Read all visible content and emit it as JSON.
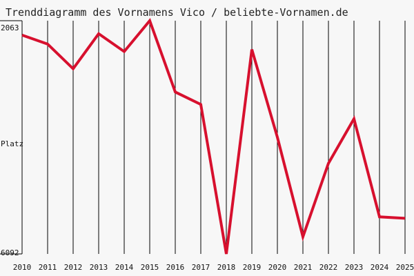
{
  "chart_data": {
    "type": "line",
    "title": "Trenddiagramm des Vornamens Vico / beliebte-Vornamen.de",
    "y_label": "Platz",
    "categories": [
      "2010",
      "2011",
      "2012",
      "2013",
      "2014",
      "2015",
      "2016",
      "2017",
      "2018",
      "2019",
      "2020",
      "2021",
      "2022",
      "2023",
      "2024",
      "2025"
    ],
    "values": [
      2312,
      2466,
      2893,
      2288,
      2596,
      2063,
      3295,
      3509,
      6092,
      2560,
      4077,
      5796,
      4527,
      3758,
      5452,
      5476
    ],
    "color": "#d7102e",
    "ylim": [
      6092,
      2063
    ],
    "yticks": [
      2063,
      6092
    ],
    "grid": true
  }
}
